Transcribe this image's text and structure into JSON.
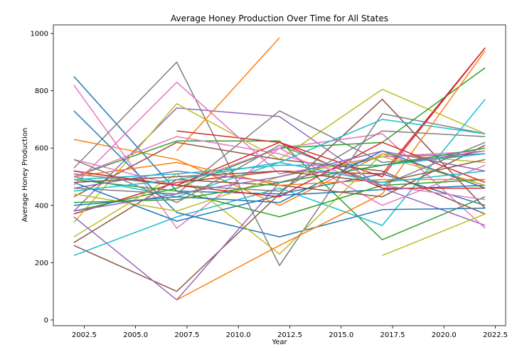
{
  "chart_data": {
    "type": "line",
    "title": "Average Honey Production Over Time for All States",
    "xlabel": "Year",
    "ylabel": "Average Honey Production",
    "xlim": [
      2001.0,
      2023.0
    ],
    "ylim": [
      -20,
      1030
    ],
    "x_ticks": [
      "2002.5",
      "2005.0",
      "2007.5",
      "2010.0",
      "2012.5",
      "2015.0",
      "2017.5",
      "2020.0",
      "2022.5"
    ],
    "x_tick_values": [
      2002.5,
      2005.0,
      2007.5,
      2010.0,
      2012.5,
      2015.0,
      2017.5,
      2020.0,
      2022.5
    ],
    "y_ticks": [
      "0",
      "200",
      "400",
      "600",
      "800",
      "1000"
    ],
    "y_tick_values": [
      0,
      200,
      400,
      600,
      800,
      1000
    ],
    "grid": false,
    "legend": "none",
    "colors": [
      "#1f77b4",
      "#ff7f0e",
      "#2ca02c",
      "#d62728",
      "#9467bd",
      "#8c564b",
      "#e377c2",
      "#7f7f7f",
      "#bcbd22",
      "#17becf"
    ],
    "series": [
      {
        "x": [
          2002,
          2007,
          2012,
          2017,
          2022
        ],
        "values": [
          850,
          450,
          440,
          510,
          400
        ]
      },
      {
        "x": [
          2002,
          2007,
          2012,
          2017,
          2022
        ],
        "values": [
          630,
          560,
          400,
          580,
          470
        ]
      },
      {
        "x": [
          2002,
          2007,
          2012,
          2017,
          2022
        ],
        "values": [
          500,
          625,
          625,
          280,
          430
        ]
      },
      {
        "x": [
          2002,
          2007,
          2012,
          2017,
          2022
        ],
        "values": [
          370,
          480,
          520,
          510,
          950
        ]
      },
      {
        "x": [
          2002,
          2007,
          2012,
          2017,
          2022
        ],
        "values": [
          380,
          740,
          710,
          460,
          330
        ]
      },
      {
        "x": [
          2002,
          2007,
          2012,
          2017,
          2022
        ],
        "values": [
          260,
          100,
          440,
          770,
          390
        ]
      },
      {
        "x": [
          2002,
          2007,
          2012,
          2017,
          2022
        ],
        "values": [
          820,
          320,
          600,
          650,
          320
        ]
      },
      {
        "x": [
          2002,
          2007,
          2012,
          2017,
          2022
        ],
        "values": [
          530,
          900,
          190,
          720,
          650
        ]
      },
      {
        "x": [
          2002,
          2007,
          2012,
          2017,
          2022
        ],
        "values": [
          340,
          755,
          560,
          805,
          650
        ]
      },
      {
        "x": [
          2002,
          2007,
          2012,
          2017,
          2022
        ],
        "values": [
          225,
          360,
          460,
          330,
          770
        ]
      },
      {
        "x": [
          2002,
          2007,
          2012,
          2017,
          2022
        ],
        "values": [
          730,
          375,
          290,
          385,
          390
        ]
      },
      {
        "x": [
          2007,
          2012
        ],
        "values": [
          590,
          985
        ]
      },
      {
        "x": [
          2002,
          2007,
          2012,
          2017,
          2022
        ],
        "values": [
          380,
          460,
          600,
          620,
          880
        ]
      },
      {
        "x": [
          2007,
          2012,
          2017,
          2022
        ],
        "values": [
          660,
          620,
          500,
          950
        ]
      },
      {
        "x": [
          2002,
          2007,
          2012,
          2017,
          2022
        ],
        "values": [
          460,
          520,
          480,
          570,
          580
        ]
      },
      {
        "x": [
          2002,
          2007,
          2012,
          2017,
          2022
        ],
        "values": [
          430,
          620,
          560,
          520,
          370
        ]
      },
      {
        "x": [
          2002,
          2007,
          2012,
          2017,
          2022
        ],
        "values": [
          560,
          470,
          600,
          400,
          540
        ]
      },
      {
        "x": [
          2002,
          2007,
          2012,
          2017,
          2022
        ],
        "values": [
          460,
          440,
          730,
          550,
          580
        ]
      },
      {
        "x": [
          2002,
          2007,
          2012,
          2017,
          2022
        ],
        "values": [
          290,
          510,
          230,
          580,
          550
        ]
      },
      {
        "x": [
          2002,
          2007,
          2012,
          2017,
          2022
        ],
        "values": [
          500,
          430,
          550,
          700,
          650
        ]
      },
      {
        "x": [
          2002,
          2007,
          2012,
          2017,
          2022
        ],
        "values": [
          480,
          345,
          435,
          455,
          470
        ]
      },
      {
        "x": [
          2007,
          2012,
          2017,
          2022
        ],
        "values": [
          70,
          260,
          440,
          940
        ]
      },
      {
        "x": [
          2002,
          2007,
          2012,
          2017,
          2022
        ],
        "values": [
          490,
          450,
          360,
          470,
          490
        ]
      },
      {
        "x": [
          2002,
          2007,
          2012,
          2017,
          2022
        ],
        "values": [
          520,
          470,
          620,
          460,
          460
        ]
      },
      {
        "x": [
          2002,
          2007,
          2012,
          2017,
          2022
        ],
        "values": [
          360,
          70,
          480,
          540,
          590
        ]
      },
      {
        "x": [
          2002,
          2007,
          2012,
          2017,
          2022
        ],
        "values": [
          270,
          490,
          470,
          430,
          610
        ]
      },
      {
        "x": [
          2002,
          2007,
          2012,
          2017,
          2022
        ],
        "values": [
          470,
          830,
          510,
          570,
          590
        ]
      },
      {
        "x": [
          2002,
          2007,
          2012,
          2017,
          2022
        ],
        "values": [
          510,
          470,
          450,
          660,
          640
        ]
      },
      {
        "x": [
          2002,
          2007,
          2012,
          2017,
          2022
        ],
        "values": [
          440,
          380,
          500,
          570,
          470
        ]
      },
      {
        "x": [
          2002,
          2007,
          2012,
          2017,
          2022
        ],
        "values": [
          490,
          510,
          540,
          540,
          580
        ]
      },
      {
        "x": [
          2002,
          2007,
          2012,
          2017,
          2022
        ],
        "values": [
          400,
          430,
          410,
          590,
          460
        ]
      },
      {
        "x": [
          2002,
          2007,
          2012,
          2017,
          2022
        ],
        "values": [
          500,
          550,
          470,
          490,
          490
        ]
      },
      {
        "x": [
          2002,
          2007,
          2012,
          2017,
          2022
        ],
        "values": [
          410,
          420,
          480,
          540,
          600
        ]
      },
      {
        "x": [
          2002,
          2007,
          2012,
          2017,
          2022
        ],
        "values": [
          520,
          470,
          430,
          620,
          480
        ]
      },
      {
        "x": [
          2002,
          2007,
          2012,
          2017,
          2022
        ],
        "values": [
          380,
          440,
          500,
          590,
          520
        ]
      },
      {
        "x": [
          2002,
          2007,
          2012,
          2017,
          2022
        ],
        "values": [
          480,
          500,
          520,
          480,
          560
        ]
      },
      {
        "x": [
          2002,
          2007,
          2012,
          2017,
          2022
        ],
        "values": [
          500,
          640,
          580,
          470,
          420
        ]
      },
      {
        "x": [
          2002,
          2007,
          2012,
          2017,
          2022
        ],
        "values": [
          560,
          410,
          610,
          470,
          620
        ]
      },
      {
        "x": [
          2017,
          2022
        ],
        "values": [
          225,
          370
        ]
      },
      {
        "x": [
          2002,
          2007,
          2012,
          2017,
          2022
        ],
        "values": [
          450,
          490,
          550,
          480,
          520
        ]
      }
    ]
  }
}
